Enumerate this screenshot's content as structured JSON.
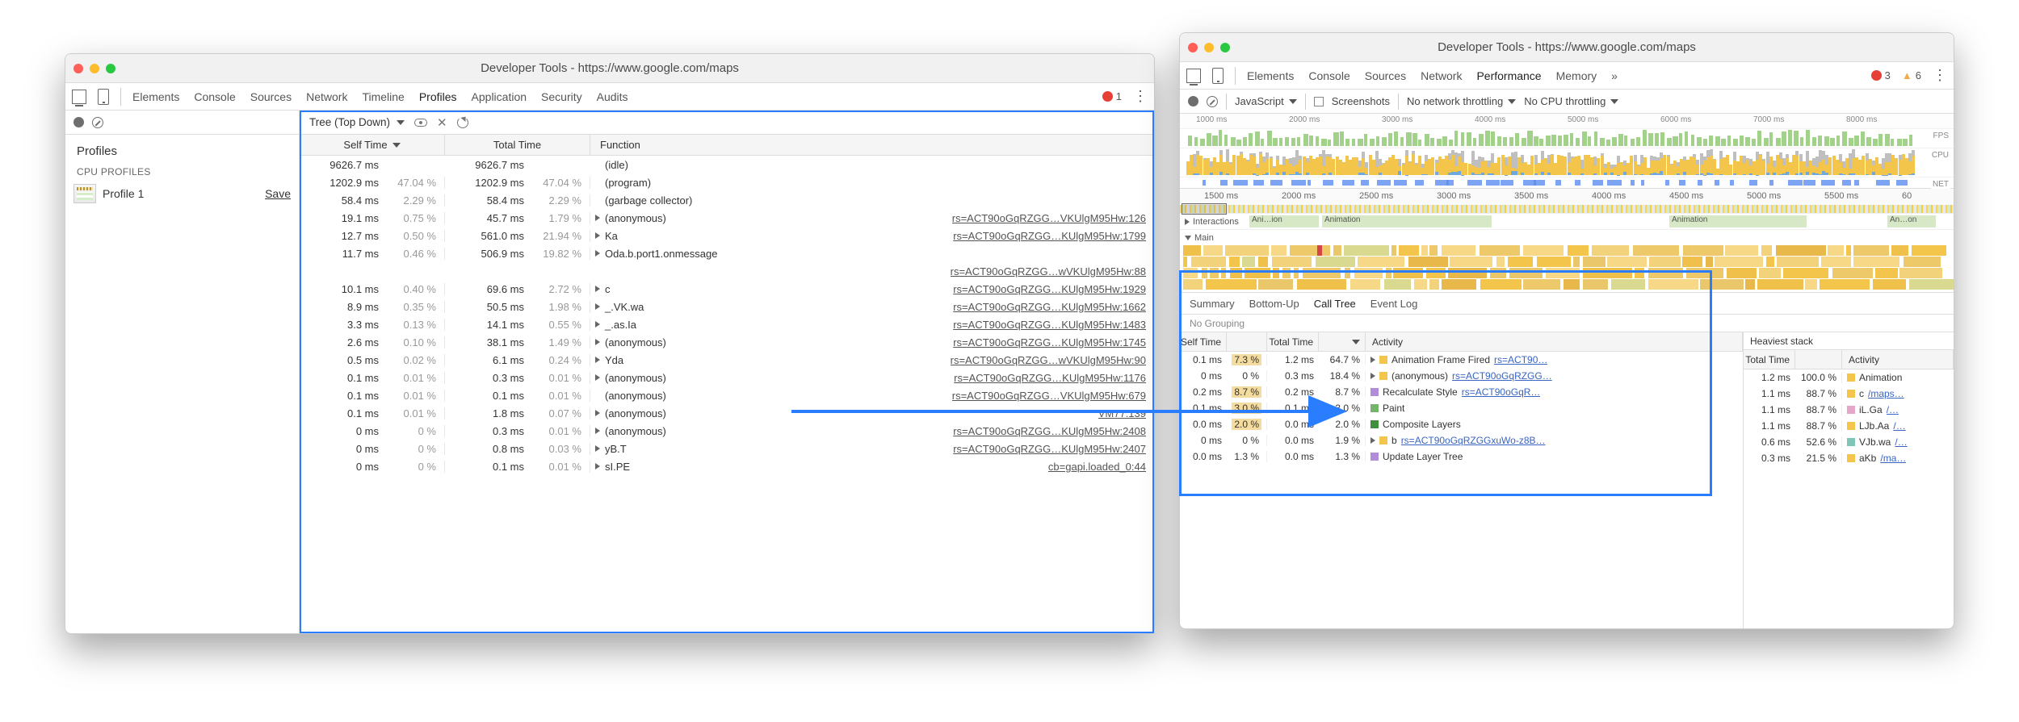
{
  "colors": {
    "error_red": "#e63f35",
    "warn_yellow": "#f0ad4e",
    "highlight_blue": "#2b7dff",
    "link": "#545454",
    "fps_green": "#a2d18a",
    "cpu_yellow": "#f3c64b",
    "cpu_blue": "#6fa8dc",
    "cpu_gray": "#bfbfbf",
    "net_blue": "#5b8def",
    "anim_lane": "#d7e8c6",
    "act_yellow": "#f3c64b",
    "act_purple": "#b28bd9",
    "act_green": "#74b56b",
    "act_dkgreen": "#3f8f3f",
    "act_gray": "#b3b3b3",
    "act_teal": "#7fc6b8",
    "act_pink": "#e6a6c9"
  },
  "winA": {
    "title": "Developer Tools - https://www.google.com/maps",
    "tabs": [
      "Elements",
      "Console",
      "Sources",
      "Network",
      "Timeline",
      "Profiles",
      "Application",
      "Security",
      "Audits"
    ],
    "active_tab": "Profiles",
    "errors": "1",
    "sidebar": {
      "heading": "Profiles",
      "sub": "CPU PROFILES",
      "profile_name": "Profile 1",
      "save": "Save"
    },
    "tree": {
      "dropdown": "Tree (Top Down)",
      "col_self": "Self Time",
      "col_total": "Total Time",
      "col_func": "Function",
      "rows": [
        {
          "s": "9626.7 ms",
          "sp": "",
          "t": "9626.7 ms",
          "tp": "",
          "fn": "(idle)",
          "exp": false,
          "link": ""
        },
        {
          "s": "1202.9 ms",
          "sp": "47.04 %",
          "t": "1202.9 ms",
          "tp": "47.04 %",
          "fn": "(program)",
          "exp": false,
          "link": ""
        },
        {
          "s": "58.4 ms",
          "sp": "2.29 %",
          "t": "58.4 ms",
          "tp": "2.29 %",
          "fn": "(garbage collector)",
          "exp": false,
          "link": ""
        },
        {
          "s": "19.1 ms",
          "sp": "0.75 %",
          "t": "45.7 ms",
          "tp": "1.79 %",
          "fn": "(anonymous)",
          "exp": true,
          "link": "rs=ACT90oGqRZGG…VKUlgM95Hw:126"
        },
        {
          "s": "12.7 ms",
          "sp": "0.50 %",
          "t": "561.0 ms",
          "tp": "21.94 %",
          "fn": "Ka",
          "exp": true,
          "link": "rs=ACT90oGqRZGG…KUlgM95Hw:1799"
        },
        {
          "s": "11.7 ms",
          "sp": "0.46 %",
          "t": "506.9 ms",
          "tp": "19.82 %",
          "fn": "Oda.b.port1.onmessage",
          "exp": true,
          "link": ""
        },
        {
          "s": "",
          "sp": "",
          "t": "",
          "tp": "",
          "fn": "",
          "exp": false,
          "link": "rs=ACT90oGqRZGG…wVKUlgM95Hw:88"
        },
        {
          "s": "10.1 ms",
          "sp": "0.40 %",
          "t": "69.6 ms",
          "tp": "2.72 %",
          "fn": "c",
          "exp": true,
          "link": "rs=ACT90oGqRZGG…KUlgM95Hw:1929"
        },
        {
          "s": "8.9 ms",
          "sp": "0.35 %",
          "t": "50.5 ms",
          "tp": "1.98 %",
          "fn": "_.VK.wa",
          "exp": true,
          "link": "rs=ACT90oGqRZGG…KUlgM95Hw:1662"
        },
        {
          "s": "3.3 ms",
          "sp": "0.13 %",
          "t": "14.1 ms",
          "tp": "0.55 %",
          "fn": "_.as.Ia",
          "exp": true,
          "link": "rs=ACT90oGqRZGG…KUlgM95Hw:1483"
        },
        {
          "s": "2.6 ms",
          "sp": "0.10 %",
          "t": "38.1 ms",
          "tp": "1.49 %",
          "fn": "(anonymous)",
          "exp": true,
          "link": "rs=ACT90oGqRZGG…KUlgM95Hw:1745"
        },
        {
          "s": "0.5 ms",
          "sp": "0.02 %",
          "t": "6.1 ms",
          "tp": "0.24 %",
          "fn": "Yda",
          "exp": true,
          "link": "rs=ACT90oGqRZGG…wVKUlgM95Hw:90"
        },
        {
          "s": "0.1 ms",
          "sp": "0.01 %",
          "t": "0.3 ms",
          "tp": "0.01 %",
          "fn": "(anonymous)",
          "exp": true,
          "link": "rs=ACT90oGqRZGG…KUlgM95Hw:1176"
        },
        {
          "s": "0.1 ms",
          "sp": "0.01 %",
          "t": "0.1 ms",
          "tp": "0.01 %",
          "fn": "(anonymous)",
          "exp": false,
          "link": "rs=ACT90oGqRZGG…VKUlgM95Hw:679"
        },
        {
          "s": "0.1 ms",
          "sp": "0.01 %",
          "t": "1.8 ms",
          "tp": "0.07 %",
          "fn": "(anonymous)",
          "exp": true,
          "link": "VM77:139"
        },
        {
          "s": "0 ms",
          "sp": "0 %",
          "t": "0.3 ms",
          "tp": "0.01 %",
          "fn": "(anonymous)",
          "exp": true,
          "link": "rs=ACT90oGqRZGG…KUlgM95Hw:2408"
        },
        {
          "s": "0 ms",
          "sp": "0 %",
          "t": "0.8 ms",
          "tp": "0.03 %",
          "fn": "yB.T",
          "exp": true,
          "link": "rs=ACT90oGqRZGG…KUlgM95Hw:2407"
        },
        {
          "s": "0 ms",
          "sp": "0 %",
          "t": "0.1 ms",
          "tp": "0.01 %",
          "fn": "sI.PE",
          "exp": true,
          "link": "cb=gapi.loaded_0:44"
        }
      ]
    }
  },
  "winB": {
    "title": "Developer Tools - https://www.google.com/maps",
    "tabs": [
      "Elements",
      "Console",
      "Sources",
      "Network",
      "Performance",
      "Memory"
    ],
    "active_tab": "Performance",
    "errors": "3",
    "warnings": "6",
    "sub": {
      "js": "JavaScript",
      "screenshots": "Screenshots",
      "throttling1": "No network throttling",
      "throttling2": "No CPU throttling"
    },
    "scale_top": [
      "1000 ms",
      "2000 ms",
      "3000 ms",
      "4000 ms",
      "5000 ms",
      "6000 ms",
      "7000 ms",
      "8000 ms"
    ],
    "lanes": {
      "fps": "FPS",
      "cpu": "CPU",
      "net": "NET"
    },
    "scale2": [
      "1500 ms",
      "2000 ms",
      "2500 ms",
      "3000 ms",
      "3500 ms",
      "4000 ms",
      "4500 ms",
      "5000 ms",
      "5500 ms",
      "60"
    ],
    "tracks": {
      "interactions": "Interactions",
      "animation": "Ani…ion",
      "animation2": "Animation",
      "animation3": "Animation",
      "animation4": "An…on",
      "main": "Main"
    },
    "tabsB": [
      "Summary",
      "Bottom-Up",
      "Call Tree",
      "Event Log"
    ],
    "active_tabB": "Call Tree",
    "grouping": "No Grouping",
    "headers": {
      "self": "Self Time",
      "total": "Total Time",
      "activity": "Activity",
      "heaviest": "Heaviest stack"
    },
    "calltree": [
      {
        "s": "0.1 ms",
        "sp": "7.3 %",
        "t": "1.2 ms",
        "tp": "64.7 %",
        "bg": "#f4dca1",
        "exp": true,
        "color": "#f3c64b",
        "label": "Animation Frame Fired",
        "link": "rs=ACT90…"
      },
      {
        "s": "0 ms",
        "sp": "0 %",
        "t": "0.3 ms",
        "tp": "18.4 %",
        "bg": "",
        "exp": true,
        "color": "#f3c64b",
        "label": "(anonymous)",
        "link": "rs=ACT90oGqRZGG…"
      },
      {
        "s": "0.2 ms",
        "sp": "8.7 %",
        "t": "0.2 ms",
        "tp": "8.7 %",
        "bg": "#f4dca1",
        "exp": false,
        "color": "#b28bd9",
        "label": "Recalculate Style",
        "link": "rs=ACT90oGqR…"
      },
      {
        "s": "0.1 ms",
        "sp": "3.0 %",
        "t": "0.1 ms",
        "tp": "3.0 %",
        "bg": "#f4dca1",
        "exp": false,
        "color": "#74b56b",
        "label": "Paint",
        "link": ""
      },
      {
        "s": "0.0 ms",
        "sp": "2.0 %",
        "t": "0.0 ms",
        "tp": "2.0 %",
        "bg": "#f4dca1",
        "exp": false,
        "color": "#3f8f3f",
        "label": "Composite Layers",
        "link": ""
      },
      {
        "s": "0 ms",
        "sp": "0 %",
        "t": "0.0 ms",
        "tp": "1.9 %",
        "bg": "",
        "exp": true,
        "color": "#f3c64b",
        "label": "b",
        "link": "rs=ACT90oGqRZGGxuWo-z8B…"
      },
      {
        "s": "0.0 ms",
        "sp": "1.3 %",
        "t": "0.0 ms",
        "tp": "1.3 %",
        "bg": "",
        "exp": false,
        "color": "#b28bd9",
        "label": "Update Layer Tree",
        "link": ""
      }
    ],
    "heaviest": [
      {
        "t": "1.2 ms",
        "tp": "100.0 %",
        "color": "#f3c64b",
        "label": "Animation",
        "link": ""
      },
      {
        "t": "1.1 ms",
        "tp": "88.7 %",
        "color": "#f3c64b",
        "label": "c",
        "link": "/maps…"
      },
      {
        "t": "1.1 ms",
        "tp": "88.7 %",
        "color": "#e6a6c9",
        "label": "iL.Ga",
        "link": "/…"
      },
      {
        "t": "1.1 ms",
        "tp": "88.7 %",
        "color": "#f3c64b",
        "label": "LJb.Aa",
        "link": "/…"
      },
      {
        "t": "0.6 ms",
        "tp": "52.6 %",
        "color": "#7fc6b8",
        "label": "VJb.wa",
        "link": "/…"
      },
      {
        "t": "0.3 ms",
        "tp": "21.5 %",
        "color": "#f3c64b",
        "label": "aKb",
        "link": "/ma…"
      }
    ]
  }
}
